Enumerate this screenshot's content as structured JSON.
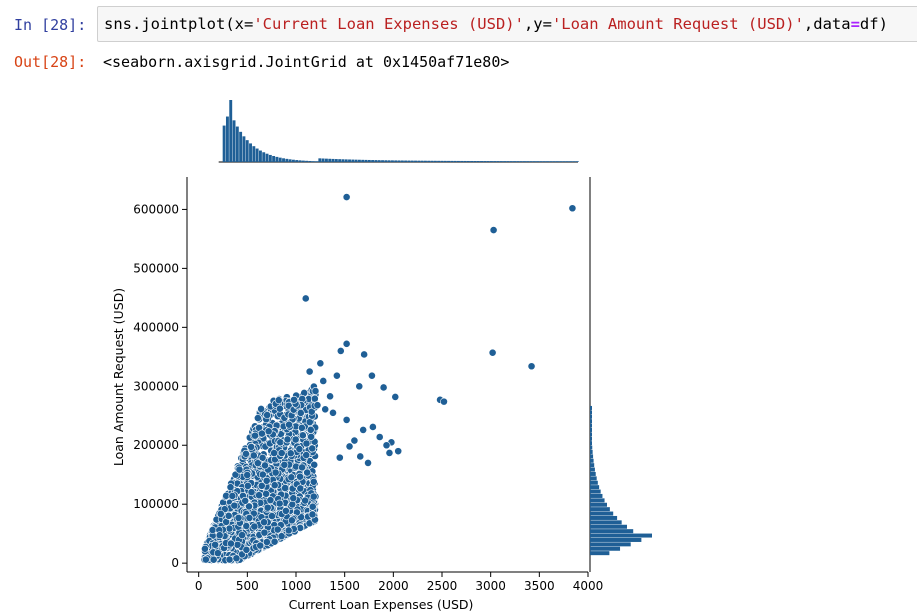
{
  "cell": {
    "in_prompt": "In [28]:",
    "out_prompt": "Out[28]:",
    "code": {
      "func": "sns.jointplot(x=",
      "x_arg": "'Current Loan Expenses (USD)'",
      "y_kw": ",y=",
      "y_arg": "'Loan Amount Request (USD)'",
      "data_kw": ",data",
      "eq": "=",
      "data_val": "df)"
    },
    "output": "<seaborn.axisgrid.JointGrid at 0x1450af71e80>"
  },
  "chart_data": {
    "type": "scatter",
    "xlabel": "Current Loan Expenses (USD)",
    "ylabel": "Loan Amount Request (USD)",
    "xlim": [
      -120,
      4000
    ],
    "ylim": [
      -15000,
      655000
    ],
    "xticks": [
      0,
      500,
      1000,
      1500,
      2000,
      2500,
      3000,
      3500,
      4000
    ],
    "yticks": [
      0,
      100000,
      200000,
      300000,
      400000,
      500000,
      600000
    ],
    "color": "#1f5f96",
    "marginal_x_hist": true,
    "marginal_y_hist": true,
    "outliers": [
      {
        "x": 1520,
        "y": 621000
      },
      {
        "x": 3840,
        "y": 602000
      },
      {
        "x": 3030,
        "y": 565000
      },
      {
        "x": 1100,
        "y": 449000
      },
      {
        "x": 3020,
        "y": 357000
      },
      {
        "x": 3420,
        "y": 334000
      },
      {
        "x": 2480,
        "y": 277000
      },
      {
        "x": 2520,
        "y": 274000
      },
      {
        "x": 1520,
        "y": 372000
      },
      {
        "x": 1460,
        "y": 360000
      },
      {
        "x": 1700,
        "y": 354000
      },
      {
        "x": 1780,
        "y": 318000
      },
      {
        "x": 1900,
        "y": 298000
      },
      {
        "x": 1650,
        "y": 300000
      },
      {
        "x": 2020,
        "y": 282000
      },
      {
        "x": 1420,
        "y": 318000
      },
      {
        "x": 1250,
        "y": 339000
      },
      {
        "x": 2050,
        "y": 190000
      },
      {
        "x": 1980,
        "y": 205000
      },
      {
        "x": 1860,
        "y": 214000
      },
      {
        "x": 1790,
        "y": 231000
      },
      {
        "x": 1690,
        "y": 226000
      },
      {
        "x": 1520,
        "y": 243000
      },
      {
        "x": 1600,
        "y": 208000
      },
      {
        "x": 1660,
        "y": 181000
      },
      {
        "x": 1550,
        "y": 198000
      },
      {
        "x": 1450,
        "y": 179000
      },
      {
        "x": 1380,
        "y": 255000
      },
      {
        "x": 1300,
        "y": 261000
      },
      {
        "x": 1350,
        "y": 283000
      },
      {
        "x": 1280,
        "y": 309000
      },
      {
        "x": 1200,
        "y": 292000
      },
      {
        "x": 1740,
        "y": 170000
      },
      {
        "x": 1960,
        "y": 187000
      },
      {
        "x": 1930,
        "y": 200000
      },
      {
        "x": 1220,
        "y": 268000
      },
      {
        "x": 1140,
        "y": 325000
      }
    ]
  }
}
